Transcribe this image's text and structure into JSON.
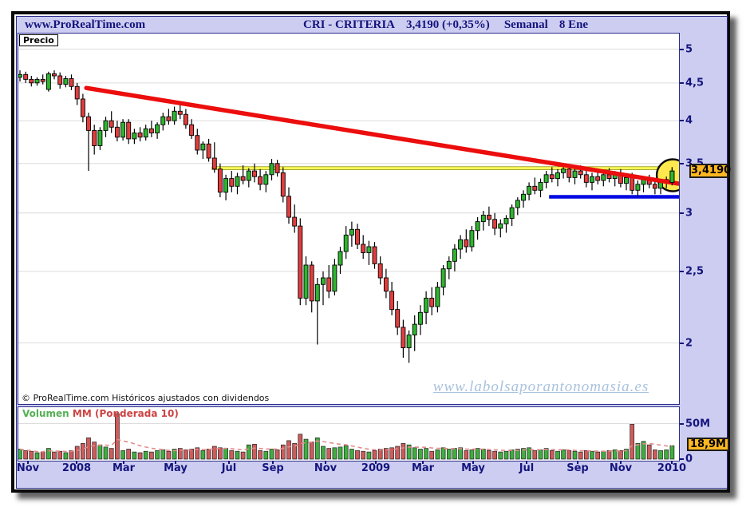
{
  "window": {
    "title_left": "www.ProRealTime.com",
    "symbol": "CRI - CRITERIA",
    "quote": "3,4190 (+0,35%)",
    "timeframe": "Semanal",
    "date": "8 Ene"
  },
  "price_panel": {
    "label": "Precio",
    "copyright": "© ProRealTime.com  Históricos ajustados con dividendos",
    "watermark": "www.labolsaporantonomasia.es",
    "price_tag": "3,4190",
    "y_ticks": [
      {
        "label": "5",
        "price": 5
      },
      {
        "label": "4,5",
        "price": 4.5
      },
      {
        "label": "4",
        "price": 4
      },
      {
        "label": "3,5",
        "price": 3.5
      },
      {
        "label": "3",
        "price": 3
      },
      {
        "label": "2,5",
        "price": 2.5
      },
      {
        "label": "2",
        "price": 2
      }
    ]
  },
  "volume_panel": {
    "label_volume": "Volumen",
    "label_ma": "MM (Ponderada 10)",
    "volume_tag": "18,9M",
    "y_ticks": [
      {
        "label": "50M",
        "value": 50
      },
      {
        "label": "0",
        "value": 0
      }
    ]
  },
  "x_axis": {
    "labels": [
      {
        "text": "Nov",
        "x": 35
      },
      {
        "text": "2008",
        "x": 96
      },
      {
        "text": "Mar",
        "x": 155
      },
      {
        "text": "May",
        "x": 220
      },
      {
        "text": "Jul",
        "x": 287
      },
      {
        "text": "Sep",
        "x": 342
      },
      {
        "text": "Nov",
        "x": 408
      },
      {
        "text": "2009",
        "x": 471
      },
      {
        "text": "Mar",
        "x": 530
      },
      {
        "text": "May",
        "x": 593
      },
      {
        "text": "Jul",
        "x": 660
      },
      {
        "text": "Sep",
        "x": 724
      },
      {
        "text": "Nov",
        "x": 778
      },
      {
        "text": "2010",
        "x": 842
      }
    ]
  },
  "colors": {
    "candle_up": "#2eb52e",
    "candle_down": "#e23d3d",
    "vol_up": "#3fae3f",
    "vol_down": "#cf5b5b",
    "trendline": "#ec0d0d",
    "support": "#0009e2",
    "resistance_fill": "#ffff5c",
    "resistance_edge": "#8f8f00",
    "circle_fill": "#ffe94d",
    "grid": "#dcdcdc",
    "vol_ma": "#e58a8a",
    "tag_bg": "#ffb820",
    "window_bg": "#cdcdf2",
    "navy": "#14147d"
  },
  "chart_data": {
    "type": "candlestick+volume",
    "title": "CRI - CRITERIA",
    "timeframe": "Semanal",
    "last_date": "8 Ene",
    "last_price": 3.419,
    "change_pct": "+0,35%",
    "last_volume_label": "18,9M",
    "y_scale": "log",
    "price_ticks": [
      5,
      4.5,
      4,
      3.5,
      3,
      2.5,
      2
    ],
    "volume_ticks_M": [
      50,
      0
    ],
    "x_label_months": [
      "Nov",
      "2008",
      "Mar",
      "May",
      "Jul",
      "Sep",
      "Nov",
      "2009",
      "Mar",
      "May",
      "Jul",
      "Sep",
      "Nov",
      "2010"
    ],
    "overlays": {
      "trendline": {
        "from": {
          "week": 11.6,
          "price": 4.43
        },
        "to": {
          "week": 116.9,
          "price": 3.27
        }
      },
      "resistance": {
        "price": 3.45,
        "from_week": 33.6
      },
      "support": {
        "price": 3.155,
        "from_week": 92.5
      },
      "highlight_circle": {
        "week": 114.1,
        "price": 3.374,
        "radius_px": 20
      },
      "volume_ma": {
        "type": "weighted",
        "period": 10
      }
    },
    "candles_ohlcv": [
      [
        4.58,
        4.68,
        4.52,
        4.62,
        14
      ],
      [
        4.62,
        4.66,
        4.5,
        4.55,
        12
      ],
      [
        4.55,
        4.6,
        4.45,
        4.5,
        11
      ],
      [
        4.5,
        4.58,
        4.46,
        4.55,
        9
      ],
      [
        4.55,
        4.62,
        4.48,
        4.52,
        10
      ],
      [
        4.41,
        4.66,
        4.38,
        4.63,
        15
      ],
      [
        4.63,
        4.68,
        4.55,
        4.6,
        10
      ],
      [
        4.6,
        4.65,
        4.42,
        4.48,
        11
      ],
      [
        4.48,
        4.6,
        4.44,
        4.56,
        9
      ],
      [
        4.56,
        4.62,
        4.4,
        4.45,
        12
      ],
      [
        4.45,
        4.5,
        4.2,
        4.28,
        18
      ],
      [
        4.28,
        4.35,
        3.98,
        4.05,
        22
      ],
      [
        4.05,
        4.1,
        3.42,
        3.88,
        30
      ],
      [
        3.88,
        3.95,
        3.6,
        3.7,
        24
      ],
      [
        3.7,
        3.92,
        3.65,
        3.88,
        20
      ],
      [
        3.88,
        4.05,
        3.8,
        4.0,
        17
      ],
      [
        4.0,
        4.12,
        3.85,
        3.92,
        15
      ],
      [
        3.92,
        4.0,
        3.75,
        3.8,
        64
      ],
      [
        3.8,
        4.02,
        3.76,
        3.98,
        12
      ],
      [
        3.98,
        4.02,
        3.72,
        3.78,
        14
      ],
      [
        3.78,
        3.9,
        3.72,
        3.85,
        10
      ],
      [
        3.85,
        3.92,
        3.75,
        3.8,
        9
      ],
      [
        3.8,
        3.95,
        3.76,
        3.9,
        11
      ],
      [
        3.9,
        4.0,
        3.8,
        3.85,
        10
      ],
      [
        3.85,
        3.98,
        3.78,
        3.95,
        12
      ],
      [
        3.95,
        4.1,
        3.88,
        4.05,
        13
      ],
      [
        4.05,
        4.15,
        3.95,
        4.0,
        11
      ],
      [
        4.0,
        4.18,
        3.95,
        4.12,
        14
      ],
      [
        4.12,
        4.25,
        4.02,
        4.08,
        15
      ],
      [
        4.08,
        4.15,
        3.9,
        3.95,
        13
      ],
      [
        3.95,
        4.02,
        3.78,
        3.82,
        14
      ],
      [
        3.82,
        3.9,
        3.6,
        3.65,
        16
      ],
      [
        3.65,
        3.75,
        3.55,
        3.72,
        12
      ],
      [
        3.72,
        3.78,
        3.52,
        3.56,
        14
      ],
      [
        3.56,
        3.74,
        3.4,
        3.44,
        18
      ],
      [
        3.44,
        3.5,
        3.15,
        3.2,
        16
      ],
      [
        3.2,
        3.38,
        3.12,
        3.34,
        15
      ],
      [
        3.34,
        3.42,
        3.2,
        3.26,
        12
      ],
      [
        3.26,
        3.4,
        3.18,
        3.36,
        11
      ],
      [
        3.36,
        3.48,
        3.28,
        3.32,
        10
      ],
      [
        3.32,
        3.45,
        3.25,
        3.42,
        20
      ],
      [
        3.42,
        3.5,
        3.3,
        3.36,
        21
      ],
      [
        3.36,
        3.44,
        3.22,
        3.28,
        12
      ],
      [
        3.28,
        3.42,
        3.2,
        3.38,
        11
      ],
      [
        3.38,
        3.55,
        3.32,
        3.5,
        14
      ],
      [
        3.5,
        3.54,
        3.36,
        3.4,
        13
      ],
      [
        3.4,
        3.46,
        3.1,
        3.16,
        20
      ],
      [
        3.16,
        3.25,
        2.9,
        2.96,
        26
      ],
      [
        2.96,
        3.08,
        2.82,
        2.88,
        22
      ],
      [
        2.88,
        2.95,
        2.25,
        2.3,
        35
      ],
      [
        2.3,
        2.62,
        2.25,
        2.55,
        28
      ],
      [
        2.55,
        2.58,
        2.2,
        2.28,
        24
      ],
      [
        2.28,
        2.45,
        1.99,
        2.4,
        30
      ],
      [
        2.4,
        2.5,
        2.25,
        2.45,
        18
      ],
      [
        2.45,
        2.55,
        2.3,
        2.35,
        15
      ],
      [
        2.35,
        2.6,
        2.32,
        2.55,
        16
      ],
      [
        2.55,
        2.7,
        2.48,
        2.66,
        17
      ],
      [
        2.66,
        2.88,
        2.6,
        2.8,
        19
      ],
      [
        2.8,
        2.92,
        2.7,
        2.85,
        14
      ],
      [
        2.85,
        2.9,
        2.68,
        2.72,
        12
      ],
      [
        2.72,
        2.8,
        2.6,
        2.65,
        11
      ],
      [
        2.65,
        2.75,
        2.55,
        2.7,
        10
      ],
      [
        2.7,
        2.74,
        2.52,
        2.56,
        12
      ],
      [
        2.56,
        2.62,
        2.4,
        2.45,
        14
      ],
      [
        2.45,
        2.52,
        2.3,
        2.35,
        15
      ],
      [
        2.35,
        2.42,
        2.18,
        2.22,
        16
      ],
      [
        2.22,
        2.28,
        2.05,
        2.1,
        18
      ],
      [
        2.1,
        2.15,
        1.91,
        1.97,
        22
      ],
      [
        1.97,
        2.08,
        1.88,
        2.05,
        20
      ],
      [
        2.05,
        2.18,
        1.95,
        2.12,
        16
      ],
      [
        2.12,
        2.25,
        2.05,
        2.2,
        14
      ],
      [
        2.2,
        2.35,
        2.12,
        2.3,
        15
      ],
      [
        2.3,
        2.38,
        2.18,
        2.24,
        11
      ],
      [
        2.24,
        2.42,
        2.2,
        2.38,
        13
      ],
      [
        2.38,
        2.55,
        2.32,
        2.52,
        16
      ],
      [
        2.52,
        2.62,
        2.44,
        2.58,
        14
      ],
      [
        2.58,
        2.72,
        2.5,
        2.68,
        15
      ],
      [
        2.68,
        2.8,
        2.6,
        2.76,
        16
      ],
      [
        2.76,
        2.85,
        2.65,
        2.7,
        12
      ],
      [
        2.7,
        2.88,
        2.66,
        2.84,
        13
      ],
      [
        2.84,
        2.96,
        2.76,
        2.92,
        15
      ],
      [
        2.92,
        3.02,
        2.84,
        2.98,
        14
      ],
      [
        2.98,
        3.06,
        2.88,
        2.94,
        12
      ],
      [
        2.94,
        3.0,
        2.8,
        2.86,
        11
      ],
      [
        2.86,
        2.94,
        2.78,
        2.9,
        10
      ],
      [
        2.9,
        2.98,
        2.82,
        2.95,
        11
      ],
      [
        2.95,
        3.08,
        2.88,
        3.05,
        13
      ],
      [
        3.05,
        3.15,
        2.98,
        3.12,
        14
      ],
      [
        3.12,
        3.22,
        3.05,
        3.18,
        15
      ],
      [
        3.18,
        3.3,
        3.12,
        3.26,
        16
      ],
      [
        3.26,
        3.35,
        3.18,
        3.22,
        12
      ],
      [
        3.22,
        3.34,
        3.15,
        3.3,
        13
      ],
      [
        3.3,
        3.42,
        3.24,
        3.38,
        15
      ],
      [
        3.38,
        3.46,
        3.3,
        3.34,
        12
      ],
      [
        3.34,
        3.44,
        3.26,
        3.4,
        11
      ],
      [
        3.4,
        3.5,
        3.34,
        3.44,
        13
      ],
      [
        3.44,
        3.48,
        3.3,
        3.35,
        12
      ],
      [
        3.35,
        3.45,
        3.28,
        3.42,
        11
      ],
      [
        3.42,
        3.48,
        3.34,
        3.38,
        10
      ],
      [
        3.38,
        3.46,
        3.25,
        3.3,
        12
      ],
      [
        3.3,
        3.4,
        3.22,
        3.36,
        11
      ],
      [
        3.36,
        3.44,
        3.28,
        3.32,
        10
      ],
      [
        3.32,
        3.42,
        3.26,
        3.38,
        11
      ],
      [
        3.38,
        3.45,
        3.3,
        3.34,
        12
      ],
      [
        3.34,
        3.42,
        3.26,
        3.38,
        13
      ],
      [
        3.38,
        3.44,
        3.25,
        3.29,
        12
      ],
      [
        3.29,
        3.38,
        3.22,
        3.35,
        14
      ],
      [
        3.35,
        3.4,
        3.18,
        3.22,
        49
      ],
      [
        3.22,
        3.32,
        3.16,
        3.28,
        22
      ],
      [
        3.28,
        3.36,
        3.2,
        3.33,
        25
      ],
      [
        3.33,
        3.38,
        3.24,
        3.28,
        20
      ],
      [
        3.28,
        3.34,
        3.18,
        3.24,
        13
      ],
      [
        3.24,
        3.32,
        3.18,
        3.3,
        12
      ],
      [
        3.3,
        3.36,
        3.24,
        3.33,
        13
      ],
      [
        3.3,
        3.46,
        3.27,
        3.419,
        18.9
      ]
    ]
  }
}
